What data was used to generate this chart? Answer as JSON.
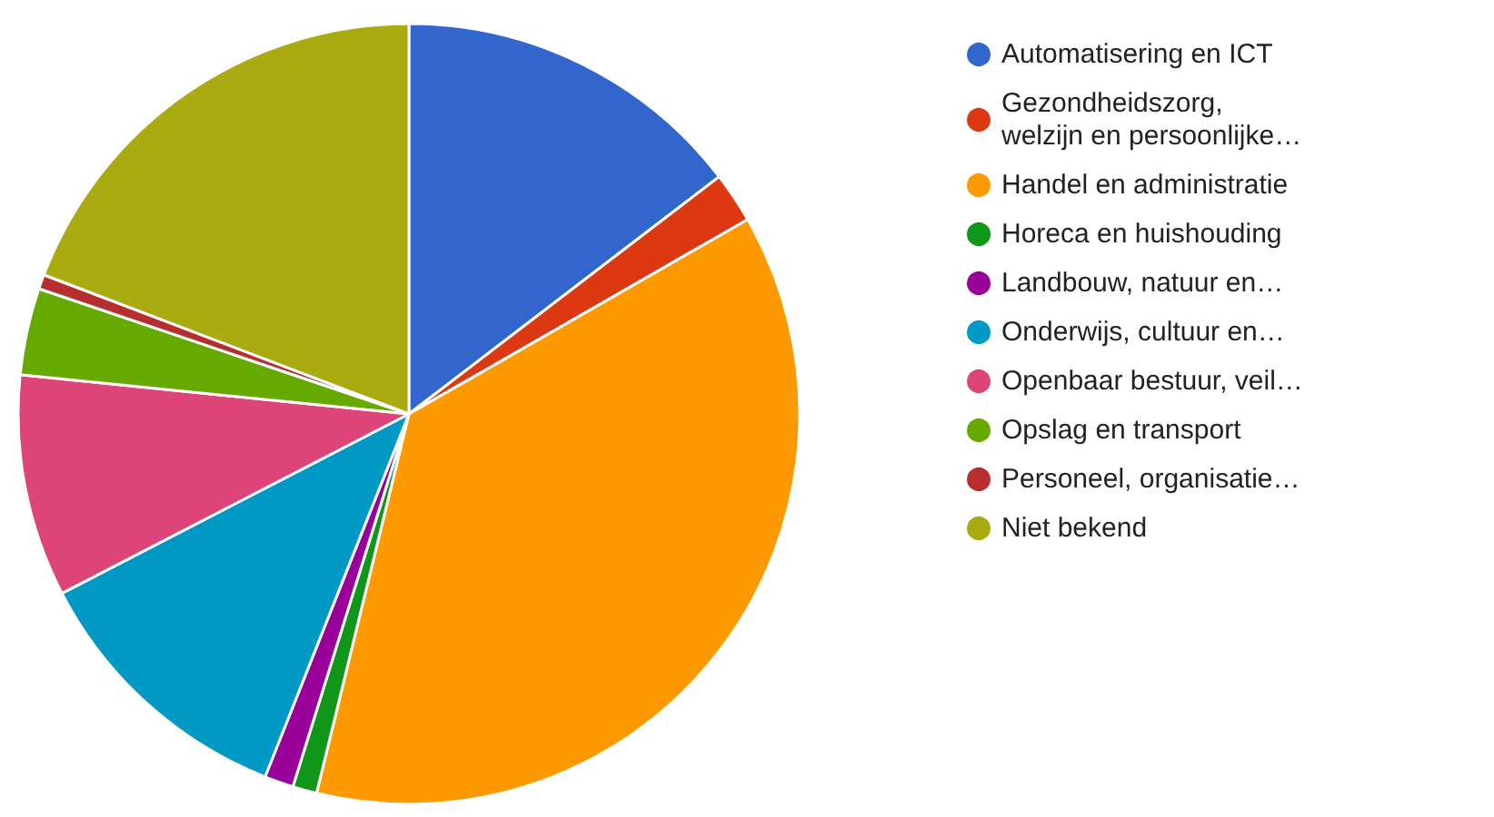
{
  "chart_data": {
    "type": "pie",
    "categories": [
      "Automatisering en ICT",
      "Gezondheidszorg,\nwelzijn en persoonlijke…",
      "Handel en administratie",
      "Horeca en huishouding",
      "Landbouw, natuur en…",
      "Onderwijs, cultuur en…",
      "Openbaar bestuur, veil…",
      "Opslag en transport",
      "Personeel, organisatie…",
      "Niet bekend"
    ],
    "values": [
      14.6,
      2.1,
      37.1,
      1.0,
      1.2,
      11.4,
      9.2,
      3.6,
      0.6,
      19.2
    ],
    "colors": [
      "#3366cc",
      "#dc3912",
      "#ff9900",
      "#109618",
      "#990099",
      "#0099c6",
      "#dd4477",
      "#66aa00",
      "#b82e2e",
      "#aaaa11"
    ],
    "legend": "right"
  }
}
